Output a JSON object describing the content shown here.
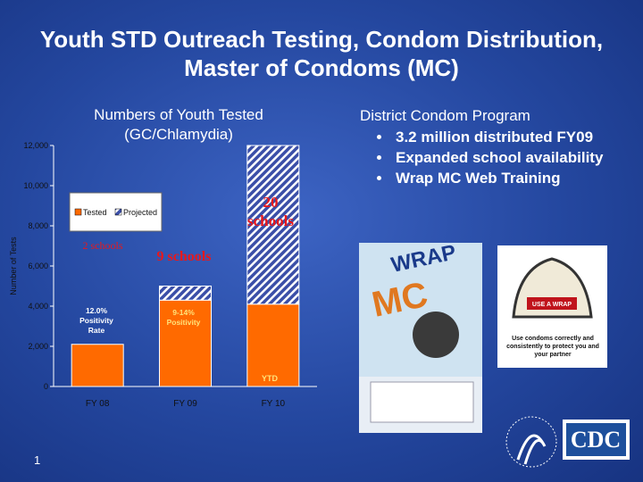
{
  "title": "Youth STD Outreach Testing, Condom Distribution, Master of Condoms (MC)",
  "program": {
    "heading": "District Condom Program",
    "bullets": [
      "3.2 million  distributed FY09",
      "Expanded school availability",
      "Wrap MC Web Training"
    ]
  },
  "poster": {
    "line_1": "WRAP",
    "line_2": "MC"
  },
  "sign": {
    "banner": "USE A WRAP",
    "caption": "Use condoms correctly and consistently to protect you and your partner"
  },
  "logo": "CDC",
  "page_number": "1",
  "chart_data": {
    "type": "bar",
    "stacked": true,
    "title": "Numbers of Youth Tested (GC/Chlamydia)",
    "y_label": "Number of Tests",
    "categories": [
      "FY 08",
      "FY 09",
      "FY 10"
    ],
    "series": [
      {
        "name": "Tested",
        "color": "#ff6a00",
        "values": [
          2100,
          4300,
          4100
        ]
      },
      {
        "name": "Projected",
        "color": "#3b4fa8",
        "pattern": "hatch",
        "values": [
          0,
          700,
          7900
        ]
      }
    ],
    "ylim": [
      0,
      12000
    ],
    "yticks": [
      0,
      {
        "value": 2000,
        "label": "2,000"
      },
      {
        "value": 4000,
        "label": "4,000"
      },
      {
        "value": 6000,
        "label": "6,000"
      },
      {
        "value": 8000,
        "label": "8,000"
      },
      {
        "value": 10000,
        "label": "10,000"
      },
      {
        "value": 12000,
        "label": "12,000"
      }
    ],
    "legend": "upper left",
    "annotations": [
      {
        "text": "12.0% Positivity Rate"
      },
      {
        "text": "9-14% Positivity"
      },
      {
        "text": "YTD"
      },
      {
        "text": "2 schools"
      },
      {
        "text": "9 schools"
      },
      {
        "text": "20 schools"
      }
    ]
  }
}
